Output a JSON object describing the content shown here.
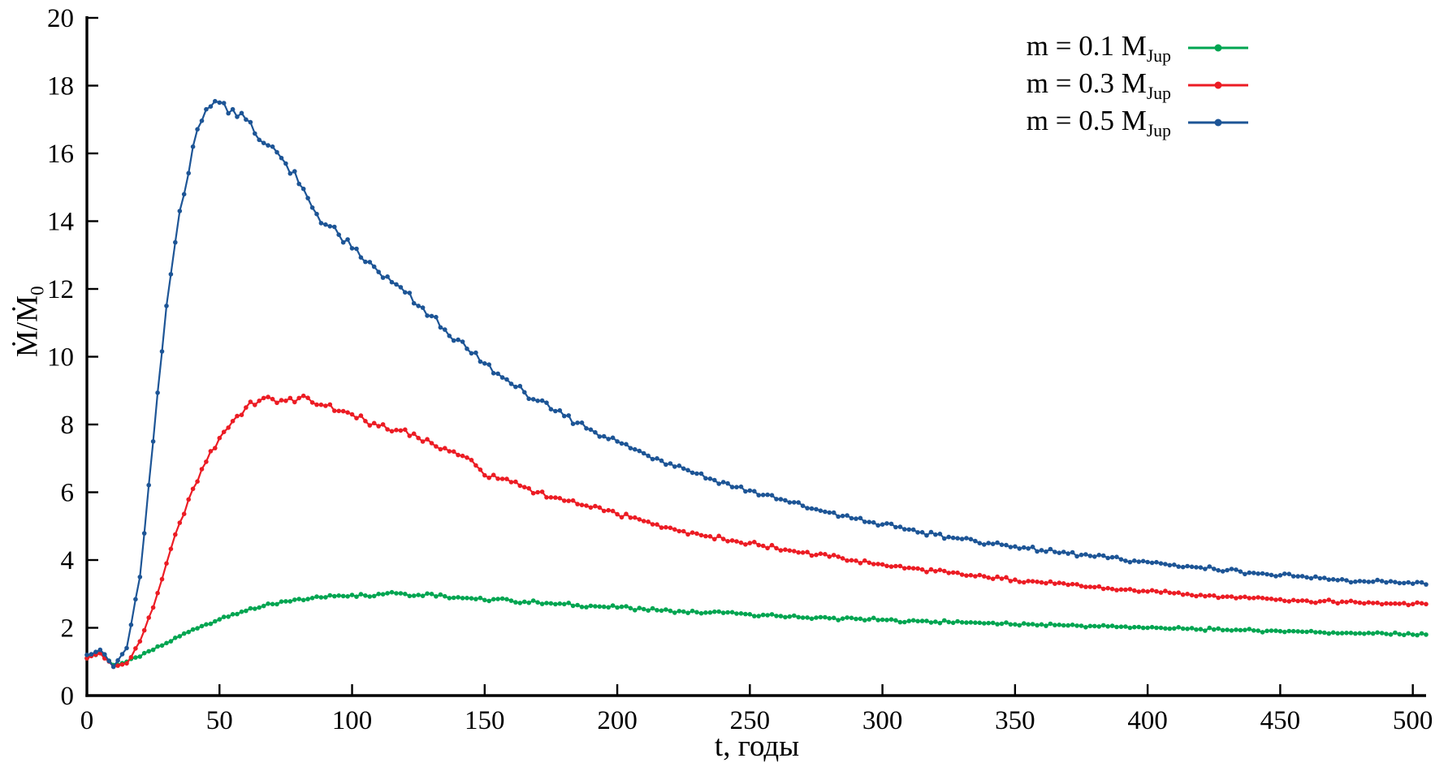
{
  "chart_data": {
    "type": "line",
    "title": "",
    "xlabel": "t, годы",
    "ylabel": "Ṁ/Ṁ",
    "ylabel_sub": "0",
    "xlim": [
      0,
      505
    ],
    "ylim": [
      0,
      20
    ],
    "x_ticks": [
      0,
      50,
      100,
      150,
      200,
      250,
      300,
      350,
      400,
      450,
      500
    ],
    "y_ticks": [
      0,
      2,
      4,
      6,
      8,
      10,
      12,
      14,
      16,
      18,
      20
    ],
    "grid": false,
    "legend_position": "top-right",
    "x": [
      0,
      5,
      10,
      15,
      20,
      25,
      30,
      35,
      40,
      45,
      50,
      55,
      60,
      65,
      70,
      75,
      80,
      85,
      90,
      95,
      100,
      105,
      110,
      115,
      120,
      125,
      130,
      135,
      140,
      145,
      150,
      155,
      160,
      165,
      170,
      175,
      180,
      185,
      190,
      195,
      200,
      205,
      210,
      215,
      220,
      225,
      230,
      235,
      240,
      245,
      250,
      255,
      260,
      265,
      270,
      275,
      280,
      285,
      290,
      295,
      300,
      305,
      310,
      315,
      320,
      325,
      330,
      335,
      340,
      345,
      350,
      355,
      360,
      365,
      370,
      375,
      380,
      385,
      390,
      395,
      400,
      405,
      410,
      415,
      420,
      425,
      430,
      435,
      440,
      445,
      450,
      455,
      460,
      465,
      470,
      475,
      480,
      485,
      490,
      495,
      500,
      505
    ],
    "series": [
      {
        "name": "m = 0.1 MJup",
        "label_main": "m = 0.1 M",
        "label_sub": "Jup",
        "color": "#00a551",
        "values": [
          1.1,
          1.3,
          0.9,
          1.0,
          1.15,
          1.35,
          1.55,
          1.75,
          1.95,
          2.1,
          2.25,
          2.4,
          2.5,
          2.6,
          2.7,
          2.78,
          2.85,
          2.88,
          2.9,
          2.95,
          2.97,
          2.95,
          3.0,
          3.05,
          3.0,
          2.97,
          3.0,
          2.93,
          2.9,
          2.87,
          2.82,
          2.85,
          2.8,
          2.77,
          2.75,
          2.72,
          2.7,
          2.67,
          2.65,
          2.62,
          2.6,
          2.58,
          2.55,
          2.52,
          2.5,
          2.48,
          2.46,
          2.45,
          2.44,
          2.42,
          2.4,
          2.38,
          2.35,
          2.33,
          2.3,
          2.3,
          2.28,
          2.27,
          2.26,
          2.25,
          2.24,
          2.22,
          2.2,
          2.2,
          2.18,
          2.17,
          2.16,
          2.15,
          2.14,
          2.12,
          2.1,
          2.1,
          2.1,
          2.08,
          2.07,
          2.06,
          2.05,
          2.04,
          2.03,
          2.02,
          2.0,
          2.0,
          1.98,
          1.97,
          1.96,
          1.95,
          1.94,
          1.93,
          1.92,
          1.91,
          1.9,
          1.9,
          1.88,
          1.87,
          1.86,
          1.85,
          1.84,
          1.83,
          1.82,
          1.81,
          1.8,
          1.8
        ]
      },
      {
        "name": "m = 0.3 MJup",
        "label_main": "m = 0.3 M",
        "label_sub": "Jup",
        "color": "#ec1c24",
        "values": [
          1.1,
          1.25,
          0.85,
          0.95,
          1.6,
          2.6,
          3.9,
          5.1,
          6.1,
          6.9,
          7.6,
          8.1,
          8.5,
          8.7,
          8.75,
          8.7,
          8.78,
          8.65,
          8.55,
          8.4,
          8.3,
          8.1,
          7.95,
          7.8,
          7.85,
          7.6,
          7.45,
          7.3,
          7.1,
          6.95,
          6.5,
          6.4,
          6.3,
          6.15,
          6.0,
          5.85,
          5.75,
          5.65,
          5.55,
          5.45,
          5.35,
          5.25,
          5.15,
          5.05,
          4.95,
          4.85,
          4.78,
          4.7,
          4.62,
          4.55,
          4.5,
          4.42,
          4.35,
          4.28,
          4.22,
          4.15,
          4.1,
          4.05,
          3.98,
          3.92,
          3.87,
          3.82,
          3.77,
          3.72,
          3.67,
          3.62,
          3.57,
          3.52,
          3.48,
          3.45,
          3.42,
          3.38,
          3.34,
          3.3,
          3.27,
          3.23,
          3.2,
          3.17,
          3.13,
          3.1,
          3.07,
          3.04,
          3.02,
          3.0,
          2.97,
          2.95,
          2.92,
          2.9,
          2.88,
          2.86,
          2.84,
          2.82,
          2.8,
          2.78,
          2.77,
          2.76,
          2.74,
          2.73,
          2.72,
          2.71,
          2.7,
          2.7
        ]
      },
      {
        "name": "m = 0.5 MJup",
        "label_main": "m = 0.5 M",
        "label_sub": "Jup",
        "color": "#1d5596",
        "values": [
          1.2,
          1.35,
          0.85,
          1.4,
          3.5,
          7.5,
          11.5,
          14.3,
          16.2,
          17.3,
          17.5,
          17.3,
          17.0,
          16.4,
          16.2,
          15.7,
          15.1,
          14.4,
          13.9,
          13.6,
          13.2,
          12.8,
          12.5,
          12.2,
          11.9,
          11.5,
          11.2,
          10.8,
          10.5,
          10.1,
          9.8,
          9.5,
          9.2,
          8.95,
          8.7,
          8.45,
          8.25,
          8.05,
          7.85,
          7.65,
          7.5,
          7.3,
          7.15,
          7.0,
          6.85,
          6.7,
          6.55,
          6.4,
          6.3,
          6.15,
          6.05,
          5.92,
          5.8,
          5.7,
          5.6,
          5.5,
          5.4,
          5.3,
          5.22,
          5.12,
          5.05,
          4.97,
          4.9,
          4.82,
          4.75,
          4.68,
          4.62,
          4.56,
          4.5,
          4.45,
          4.4,
          4.34,
          4.29,
          4.24,
          4.19,
          4.15,
          4.1,
          4.06,
          4.02,
          3.98,
          3.94,
          3.9,
          3.86,
          3.82,
          3.78,
          3.74,
          3.7,
          3.66,
          3.62,
          3.58,
          3.55,
          3.52,
          3.49,
          3.46,
          3.43,
          3.4,
          3.38,
          3.36,
          3.34,
          3.32,
          3.3,
          3.28
        ]
      }
    ]
  }
}
